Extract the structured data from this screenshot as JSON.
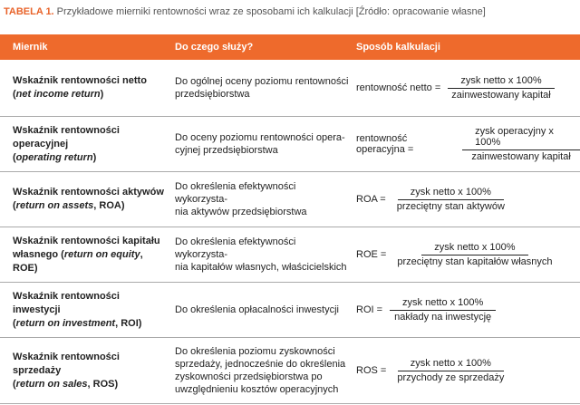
{
  "caption": {
    "label": "TABELA 1.",
    "text": "Przykładowe mierniki rentowności wraz ze sposobami ich kalkulacji [Źródło: opracowanie własne]"
  },
  "table": {
    "headers": [
      "Miernik",
      "Do czego służy?",
      "Sposób kalkulacji"
    ],
    "rows": [
      {
        "measure": {
          "name": "Wskaźnik rentowności netto",
          "pre": "(",
          "term": "net income return",
          "post": ")"
        },
        "purpose": [
          "Do ogólnej oceny poziomu rentowności",
          "przedsiębiorstwa"
        ],
        "formula": {
          "lhs": "rentowność netto =",
          "numerator": "zysk netto x 100%",
          "denominator": "zainwestowany kapitał"
        }
      },
      {
        "measure": {
          "name": "Wskaźnik rentowności operacyjnej",
          "pre": "(",
          "term": "operating return",
          "post": ")"
        },
        "purpose": [
          "Do oceny poziomu rentowności opera-",
          "cyjnej przedsiębiorstwa"
        ],
        "formula": {
          "lhs": "rentowność operacyjna =",
          "numerator": "zysk operacyjny x 100%",
          "denominator": "zainwestowany kapitał"
        }
      },
      {
        "measure": {
          "name": "Wskaźnik rentowności aktywów",
          "pre": "(",
          "term": "return on assets",
          "post": ", ROA)"
        },
        "purpose": [
          "Do określenia efektywności wykorzysta-",
          "nia aktywów przedsiębiorstwa"
        ],
        "formula": {
          "lhs": "ROA =",
          "numerator": "zysk netto x 100%",
          "denominator": "przeciętny stan aktywów"
        }
      },
      {
        "measure": {
          "name": "Wskaźnik rentowności kapitału",
          "pre": "własnego (",
          "term": "return on equity",
          "post": ", ROE)"
        },
        "purpose": [
          "Do określenia efektywności wykorzysta-",
          "nia kapitałów własnych, właścicielskich"
        ],
        "formula": {
          "lhs": "ROE =",
          "numerator": "zysk netto x 100%",
          "denominator": "przeciętny stan kapitałów własnych"
        }
      },
      {
        "measure": {
          "name": "Wskaźnik rentowności inwestycji",
          "pre": "(",
          "term": "return on investment",
          "post": ", ROI)"
        },
        "purpose": [
          "Do określenia opłacalności inwestycji"
        ],
        "formula": {
          "lhs": "ROI =",
          "numerator": "zysk netto x 100%",
          "denominator": "nakłady na inwestycję"
        }
      },
      {
        "measure": {
          "name": "Wskaźnik rentowności sprzedaży",
          "pre": "(",
          "term": "return on sales",
          "post": ", ROS)"
        },
        "purpose": [
          "Do określenia poziomu zyskowności",
          "sprzedaży, jednocześnie do określenia",
          "zyskowności przedsiębiorstwa po",
          "uwzględnieniu kosztów operacyjnych"
        ],
        "formula": {
          "lhs": "ROS =",
          "numerator": "zysk netto x 100%",
          "denominator": "przychody ze sprzedaży"
        }
      }
    ]
  }
}
